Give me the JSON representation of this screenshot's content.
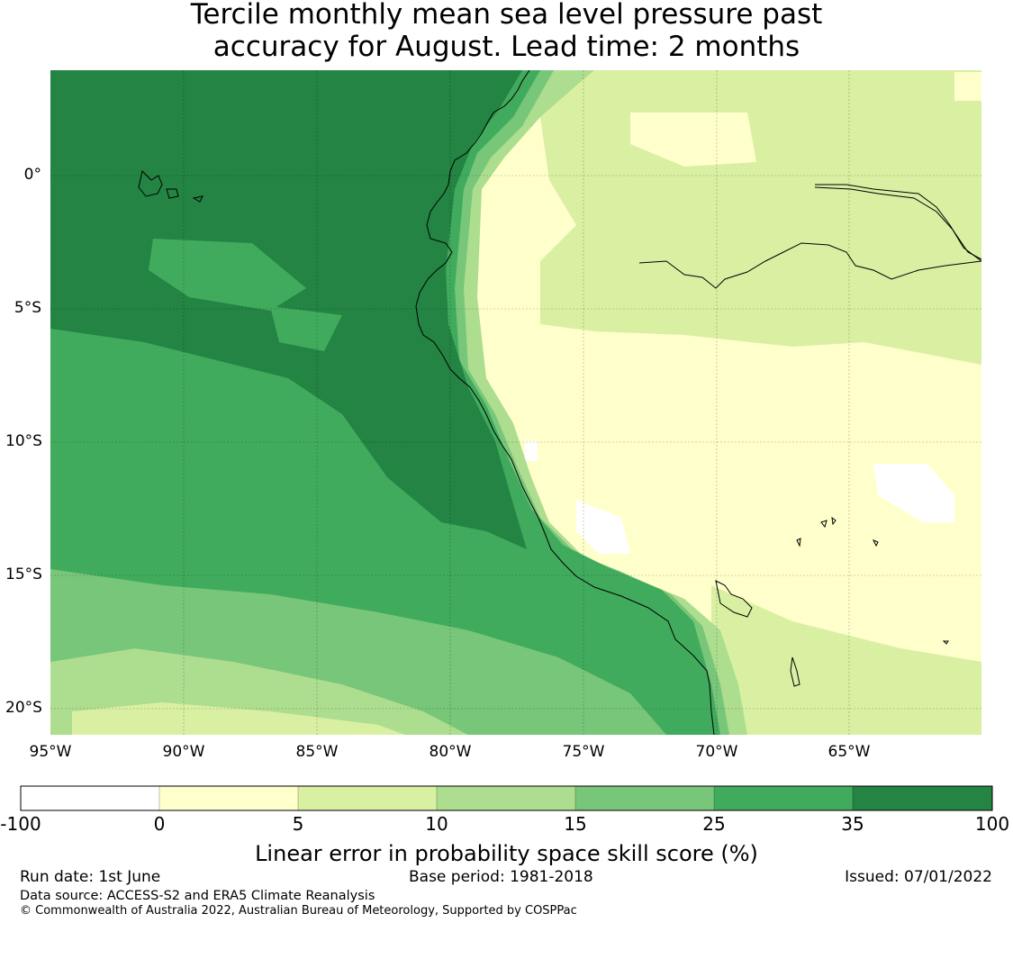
{
  "title_line1": "Tercile monthly mean sea level pressure past",
  "title_line2": "accuracy for August. Lead time: 2 months",
  "map": {
    "lon_range": [
      -95,
      -60
    ],
    "lat_range": [
      -21,
      4
    ],
    "lon_ticks": [
      "95°W",
      "90°W",
      "85°W",
      "80°W",
      "75°W",
      "70°W",
      "65°W"
    ],
    "lat_ticks": [
      "0°",
      "5°S",
      "10°S",
      "15°S",
      "20°S"
    ]
  },
  "colorbar": {
    "labels": [
      "-100",
      "0",
      "5",
      "10",
      "15",
      "25",
      "35",
      "100"
    ],
    "colors": [
      "#ffffff",
      "#ffffcc",
      "#d9f0a3",
      "#addd8e",
      "#78c679",
      "#41ab5d",
      "#238443"
    ],
    "title": "Linear error in probability space skill score (%)"
  },
  "footer": {
    "run_date": "Run date: 1st June",
    "base_period": "Base period: 1981-2018",
    "issued": "Issued: 07/01/2022",
    "data_source": "Data source: ACCESS-S2 and ERA5 Climate Reanalysis",
    "copyright": "© Commonwealth of Australia 2022, Australian Bureau of Meteorology, Supported by COSPPac"
  }
}
